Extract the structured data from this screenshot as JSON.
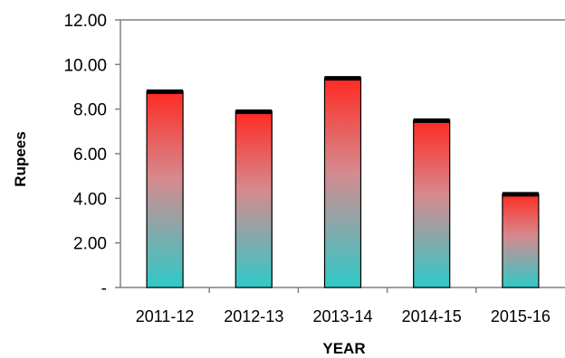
{
  "chart_data": {
    "type": "bar",
    "title": "",
    "xlabel": "YEAR",
    "ylabel": "Rupees",
    "categories": [
      "2011-12",
      "2012-13",
      "2013-14",
      "2014-15",
      "2015-16"
    ],
    "values": [
      8.8,
      7.9,
      9.4,
      7.5,
      4.2
    ],
    "ylim": [
      0,
      12
    ],
    "yticks": [
      0,
      2,
      4,
      6,
      8,
      10,
      12
    ],
    "ytick_labels": [
      "-",
      "2.00",
      "4.00",
      "6.00",
      "8.00",
      "10.00",
      "12.00"
    ],
    "grid": false,
    "legend": "none",
    "colors": {
      "bar_top": "#ff2a22",
      "bar_mid": "#d58a8f",
      "bar_bottom": "#2ecac8",
      "bar_edge": "#000000",
      "axis": "#808080"
    }
  }
}
